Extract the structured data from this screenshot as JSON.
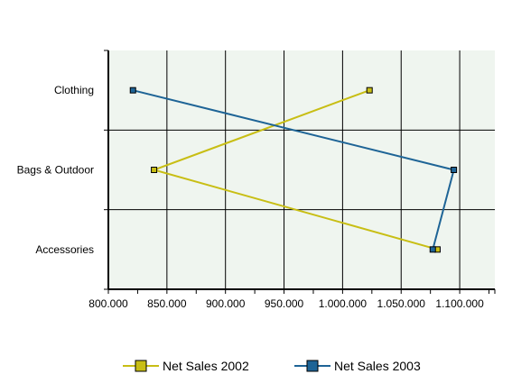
{
  "chart_data": {
    "type": "line",
    "orientation": "horizontal",
    "title": "",
    "xlabel": "",
    "ylabel": "",
    "categories": [
      "Clothing",
      "Bags & Outdoor",
      "Accessories"
    ],
    "series": [
      {
        "name": "Net Sales 2002",
        "color": "#C8BE14",
        "values": [
          1023000,
          839000,
          1081000
        ]
      },
      {
        "name": "Net Sales 2003",
        "color": "#1E6496",
        "values": [
          821000,
          1095000,
          1077000
        ]
      }
    ],
    "xlim": [
      800000,
      1130000
    ],
    "xticks": [
      800000,
      850000,
      900000,
      950000,
      1000000,
      1050000,
      1100000
    ],
    "xtick_labels": [
      "800.000",
      "850.000",
      "900.000",
      "950.000",
      "1.000.000",
      "1.050.000",
      "1.100.000"
    ],
    "grid": true,
    "plot_background": "#EFF5EF",
    "legend_position": "bottom"
  }
}
